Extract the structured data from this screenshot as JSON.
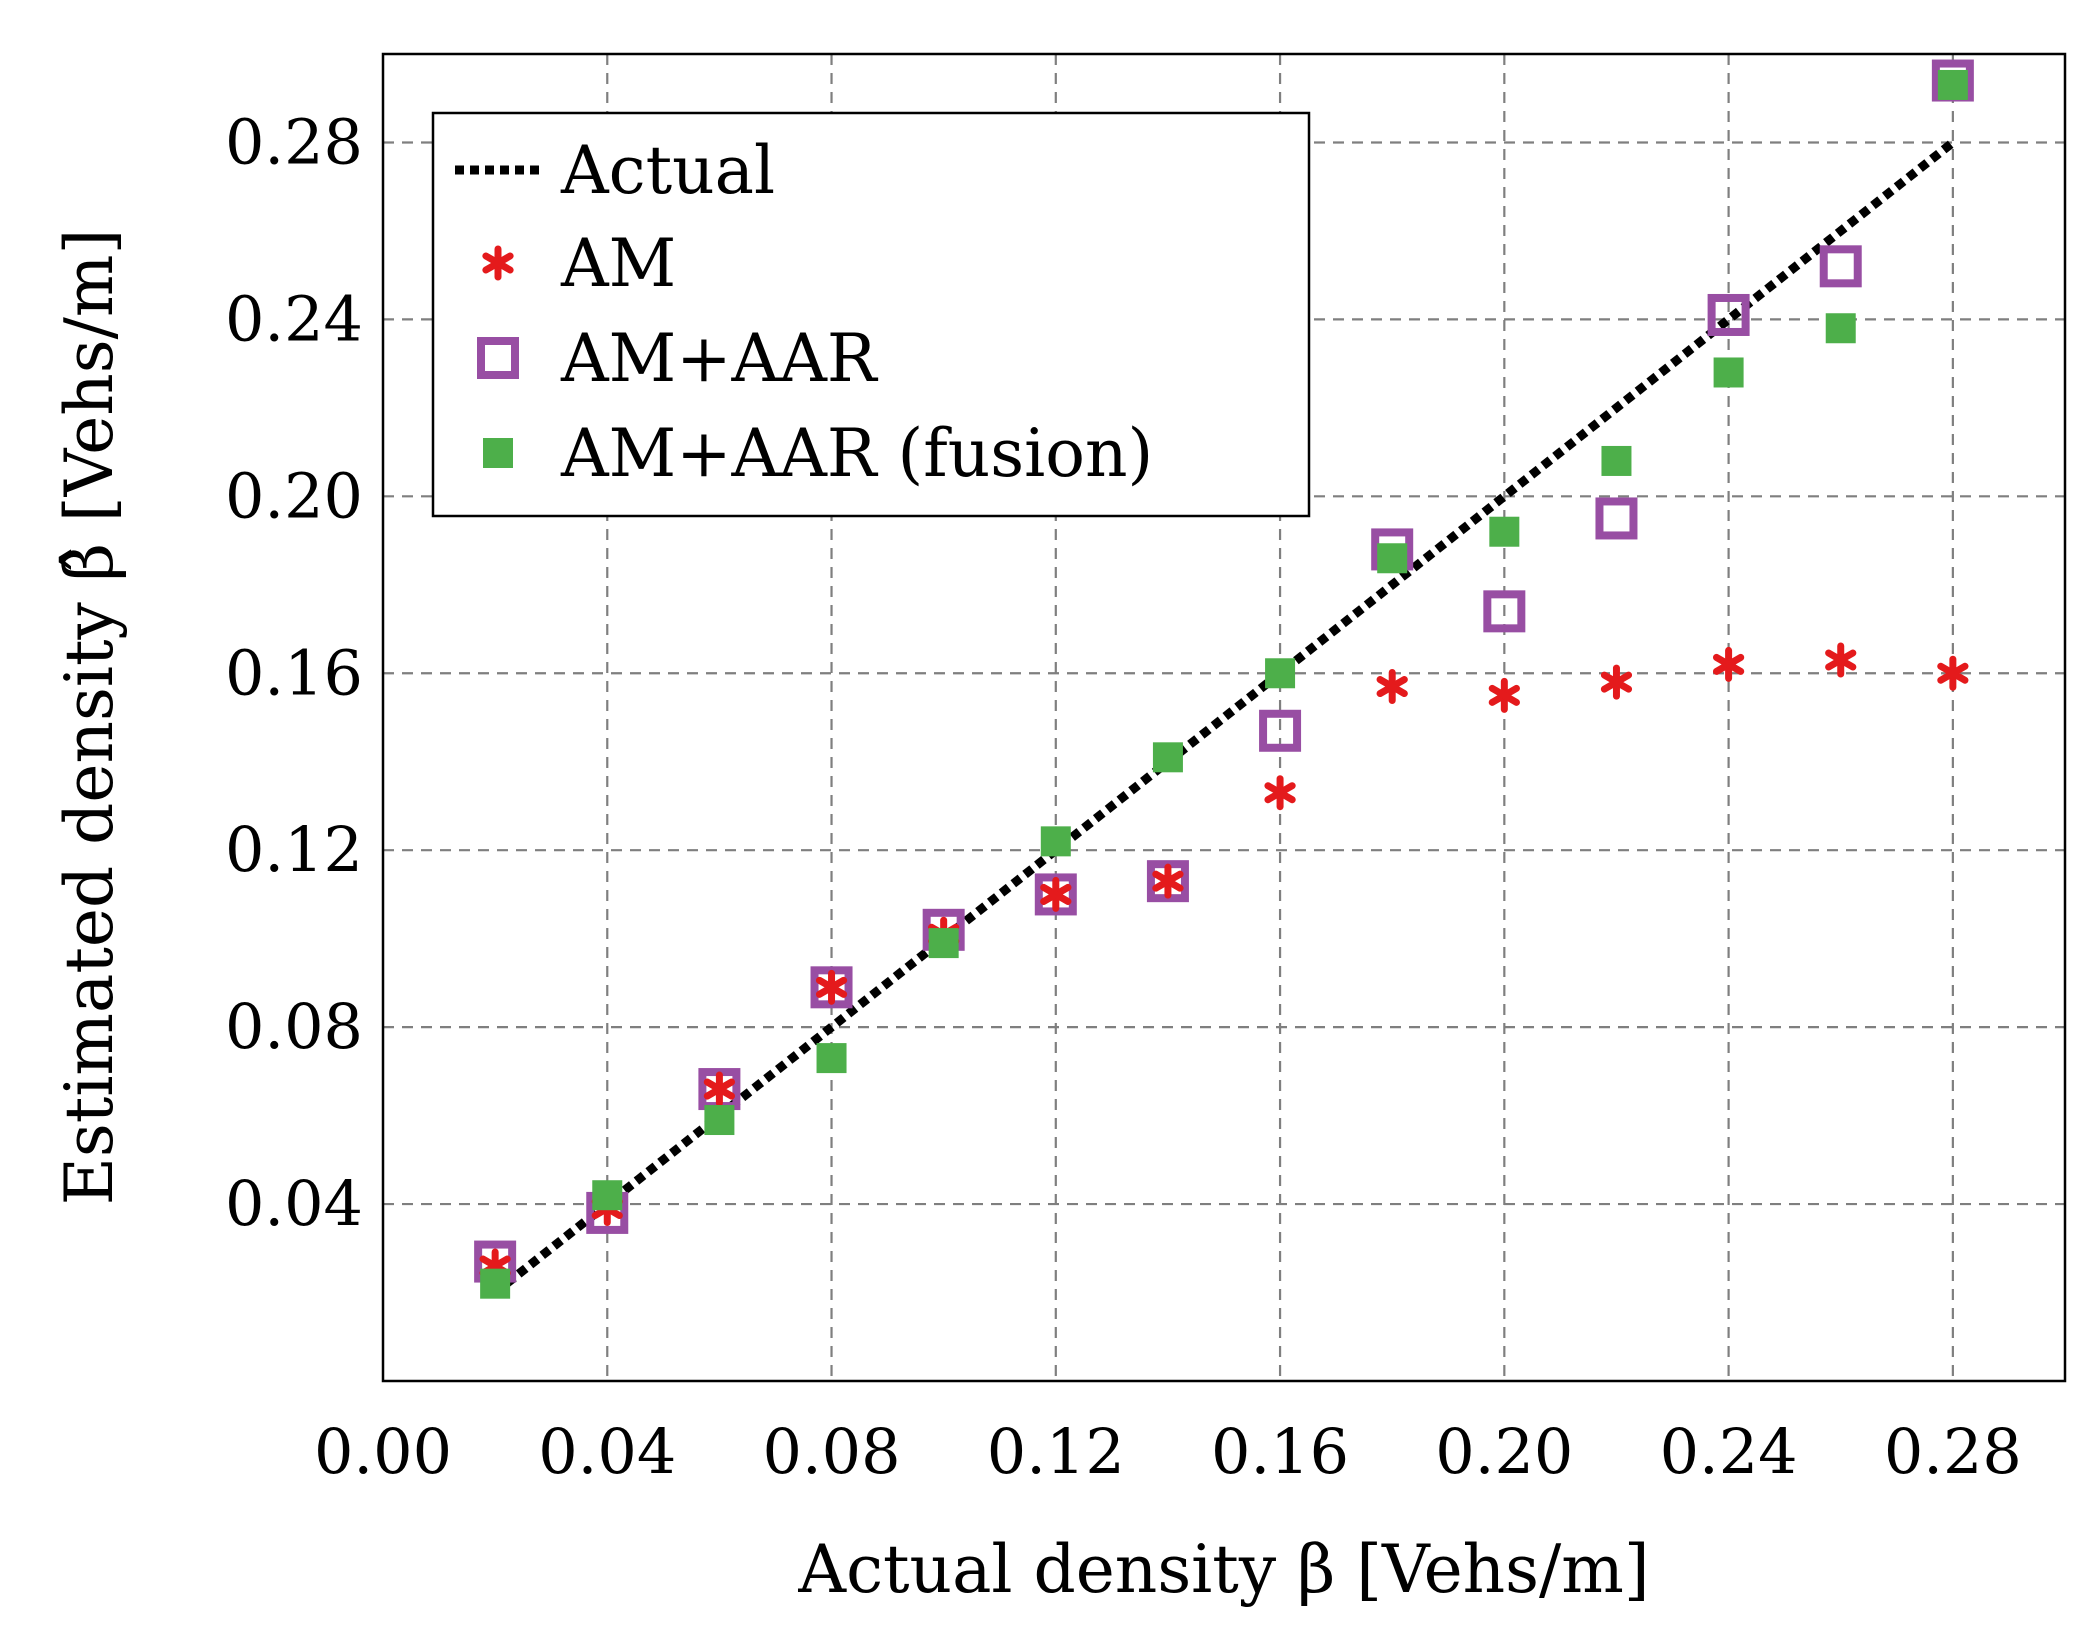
{
  "chart_data": {
    "type": "scatter",
    "xlabel": "Actual density β [Vehs/m]",
    "ylabel": "Estimated density β̂ [Vehs/m]",
    "xlim": [
      0.0,
      0.3
    ],
    "ylim": [
      0.0,
      0.3
    ],
    "xticks": [
      "0.00",
      "0.04",
      "0.08",
      "0.12",
      "0.16",
      "0.20",
      "0.24",
      "0.28"
    ],
    "yticks": [
      "0.04",
      "0.08",
      "0.12",
      "0.16",
      "0.20",
      "0.24",
      "0.28"
    ],
    "grid": true,
    "legend_position": "top-left",
    "series": [
      {
        "name": "Actual",
        "kind": "dotted-line",
        "color": "#000000",
        "x": [
          0.02,
          0.28
        ],
        "y": [
          0.02,
          0.28
        ]
      },
      {
        "name": "AM",
        "kind": "asterisk",
        "color": "#e41a1c",
        "x": [
          0.02,
          0.04,
          0.06,
          0.08,
          0.1,
          0.12,
          0.14,
          0.16,
          0.18,
          0.2,
          0.22,
          0.24,
          0.26,
          0.28
        ],
        "y": [
          0.026,
          0.039,
          0.066,
          0.089,
          0.101,
          0.11,
          0.113,
          0.133,
          0.157,
          0.155,
          0.158,
          0.162,
          0.163,
          0.16
        ]
      },
      {
        "name": "AM+AAR",
        "kind": "open-square",
        "color": "#984ea3",
        "x": [
          0.02,
          0.04,
          0.06,
          0.08,
          0.1,
          0.12,
          0.14,
          0.16,
          0.18,
          0.2,
          0.22,
          0.24,
          0.26,
          0.28
        ],
        "y": [
          0.027,
          0.038,
          0.066,
          0.089,
          0.102,
          0.11,
          0.113,
          0.147,
          0.188,
          0.174,
          0.195,
          0.241,
          0.252,
          0.294
        ]
      },
      {
        "name": "AM+AAR (fusion)",
        "kind": "filled-square",
        "color": "#4daf4a",
        "x": [
          0.02,
          0.04,
          0.06,
          0.08,
          0.1,
          0.12,
          0.14,
          0.16,
          0.18,
          0.2,
          0.22,
          0.24,
          0.26,
          0.28
        ],
        "y": [
          0.022,
          0.042,
          0.059,
          0.073,
          0.099,
          0.122,
          0.141,
          0.16,
          0.186,
          0.192,
          0.208,
          0.228,
          0.238,
          0.293
        ]
      }
    ]
  }
}
